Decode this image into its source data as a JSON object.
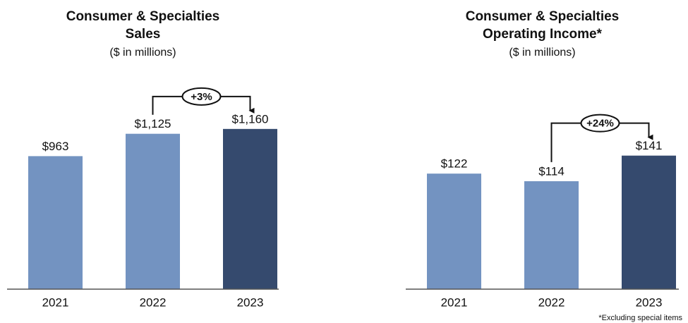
{
  "chart_data": [
    {
      "type": "bar",
      "title": [
        "Consumer & Specialties",
        "Sales"
      ],
      "subtitle": "($ in millions)",
      "categories": [
        "2021",
        "2022",
        "2023"
      ],
      "values": [
        963,
        1125,
        1160
      ],
      "value_labels": [
        "$963",
        "$1,125",
        "$1,160"
      ],
      "colors": [
        "#7393c1",
        "#7393c1",
        "#354a6e"
      ],
      "ylim": [
        0,
        1200
      ],
      "annotation": "+3%"
    },
    {
      "type": "bar",
      "title": [
        "Consumer & Specialties",
        "Operating Income*"
      ],
      "subtitle": "($ in millions)",
      "categories": [
        "2021",
        "2022",
        "2023"
      ],
      "values": [
        122,
        114,
        141
      ],
      "value_labels": [
        "$122",
        "$114",
        "$141"
      ],
      "colors": [
        "#7393c1",
        "#7393c1",
        "#354a6e"
      ],
      "ylim": [
        0,
        175
      ],
      "annotation": "+24%",
      "footnote": "*Excluding special items"
    }
  ]
}
